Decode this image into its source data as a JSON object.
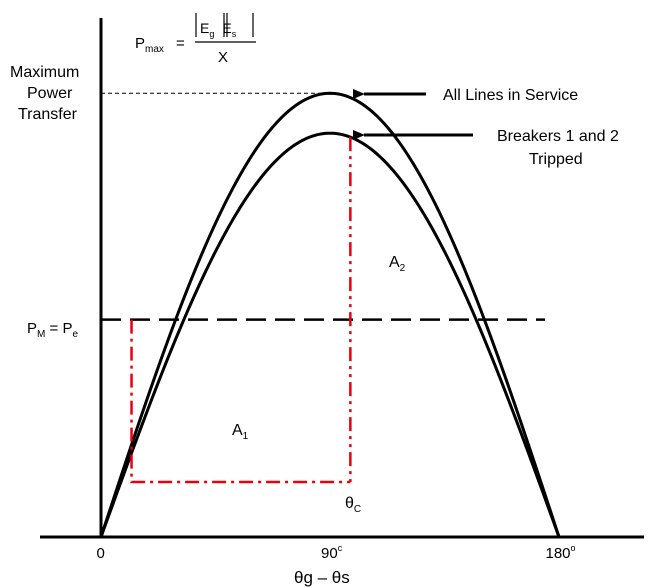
{
  "formula": {
    "lhs": "P",
    "lhs_sub": "max",
    "eq": "=",
    "num_parts": [
      "E",
      "g",
      "E",
      "s"
    ],
    "den": "X"
  },
  "labels": {
    "max_power": [
      "Maximum",
      "Power",
      "Transfer"
    ],
    "pm_eq": [
      "P",
      "M",
      " = P",
      "e"
    ],
    "all_lines": "All Lines in Service",
    "breakers": [
      "Breakers 1 and 2",
      "Tripped"
    ],
    "area1": [
      "A",
      "1"
    ],
    "area2": [
      "A",
      "2"
    ],
    "theta_c": [
      "θ",
      "C"
    ],
    "xlabel": "θg – θs"
  },
  "chart_data": {
    "type": "line",
    "xlim": [
      0,
      180
    ],
    "ylim": [
      0,
      1.12
    ],
    "x_ticks": [
      {
        "x": 0,
        "label": "0",
        "sup": ""
      },
      {
        "x": 90,
        "label": "90",
        "sup": "c"
      },
      {
        "x": 180,
        "label": "180",
        "sup": "o"
      }
    ],
    "series": [
      {
        "name": "All Lines in Service",
        "peak": 1.0
      },
      {
        "name": "Breakers 1 and 2 Tripped",
        "peak": 0.91
      }
    ],
    "pm_level": 0.49,
    "delta0_deg": 12,
    "delta_c_deg": 98,
    "colors": {
      "curve": "#000000",
      "dashed": "#000000",
      "area": "#e8000b"
    }
  }
}
